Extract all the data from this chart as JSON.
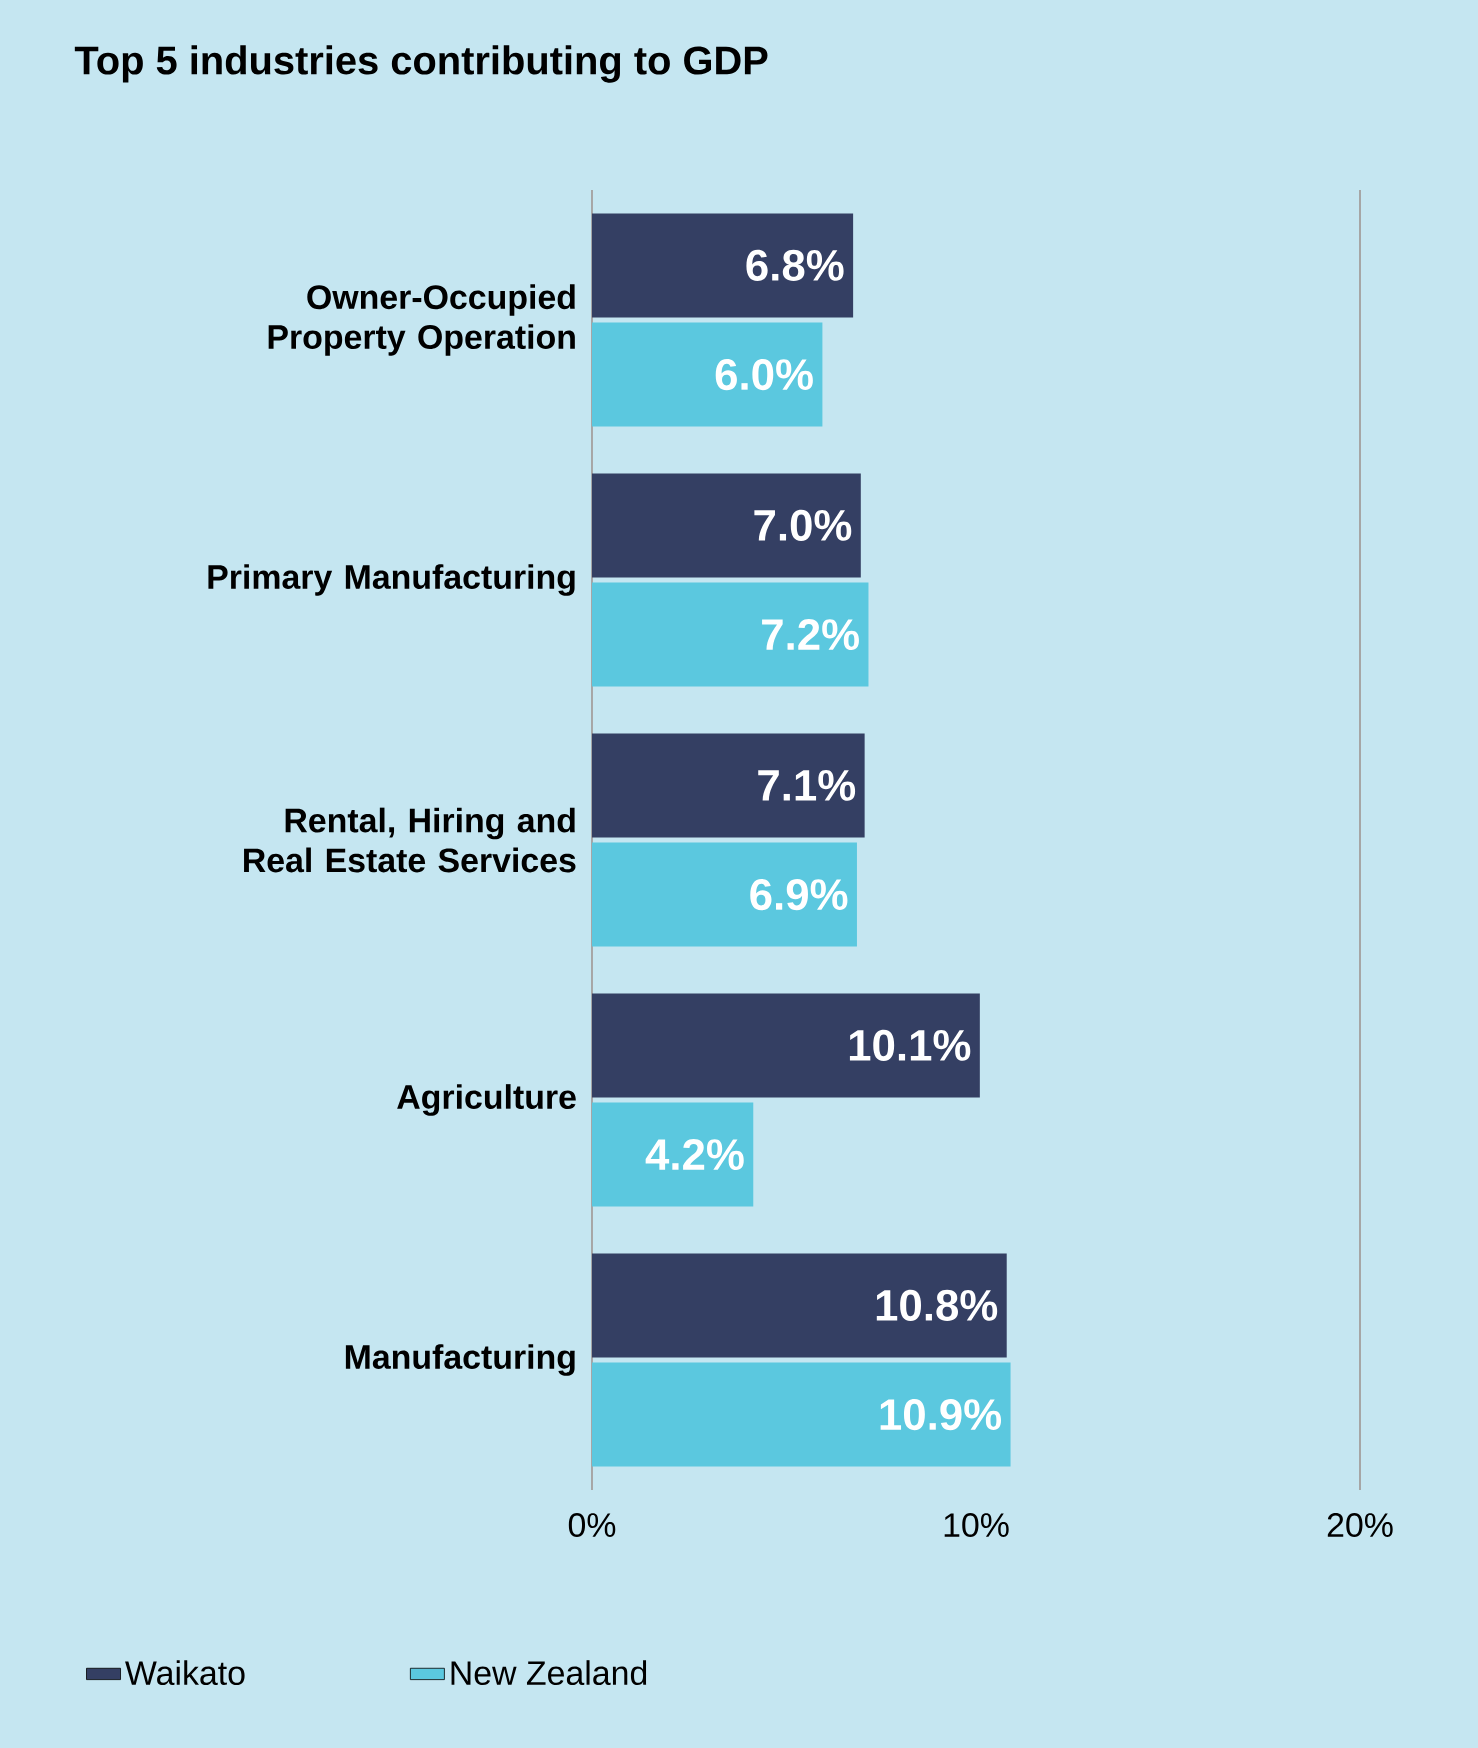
{
  "chart_data": {
    "type": "bar",
    "orientation": "horizontal",
    "title": "Top 5 industries contributing to GDP",
    "categories": [
      "Owner-Occupied Property Operation",
      "Primary Manufacturing",
      "Rental, Hiring and Real Estate Services",
      "Agriculture",
      "Manufacturing"
    ],
    "series": [
      {
        "name": "Waikato",
        "color": "#343f63",
        "values": [
          6.8,
          7.0,
          7.1,
          10.1,
          10.8
        ],
        "value_labels": [
          "6.8%",
          "7.0%",
          "7.1%",
          "10.1%",
          "10.8%"
        ]
      },
      {
        "name": "New Zealand",
        "color": "#5bc8df",
        "values": [
          6.0,
          7.2,
          6.9,
          4.2,
          10.9
        ],
        "value_labels": [
          "6.0%",
          "7.2%",
          "6.9%",
          "4.2%",
          "10.9%"
        ]
      }
    ],
    "xlim": [
      0,
      20
    ],
    "xticks": [
      {
        "value": 0,
        "label": "0%"
      },
      {
        "value": 10,
        "label": "10%"
      },
      {
        "value": 20,
        "label": "20%"
      }
    ],
    "grid": false,
    "legend": "bottom left"
  }
}
